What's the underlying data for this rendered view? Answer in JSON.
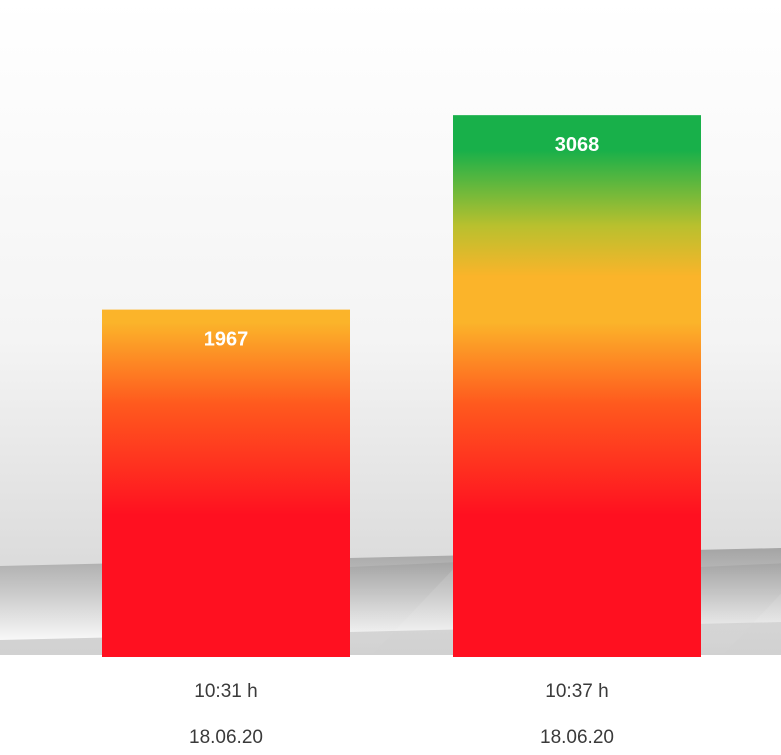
{
  "chart_data": {
    "type": "bar",
    "categories": [
      {
        "time": "10:31 h",
        "date": "18.06.20"
      },
      {
        "time": "10:37 h",
        "date": "18.06.20"
      }
    ],
    "values": [
      1967,
      3068
    ],
    "value_labels": [
      "1967",
      "3068"
    ],
    "title": "",
    "xlabel": "",
    "ylabel": "",
    "ylim": [
      0,
      3720
    ],
    "grid": false,
    "legend": "none",
    "gradient_colors": {
      "bottom": "#ff1020",
      "mid_orange": "#ff5a1e",
      "mid_yellow": "#fbb42a",
      "olive": "#b9c02e",
      "top_green": "#18b04a"
    },
    "background": {
      "top": "#ffffff",
      "bottom": "#bdbdbd",
      "floor": "#9c9c9c"
    }
  }
}
